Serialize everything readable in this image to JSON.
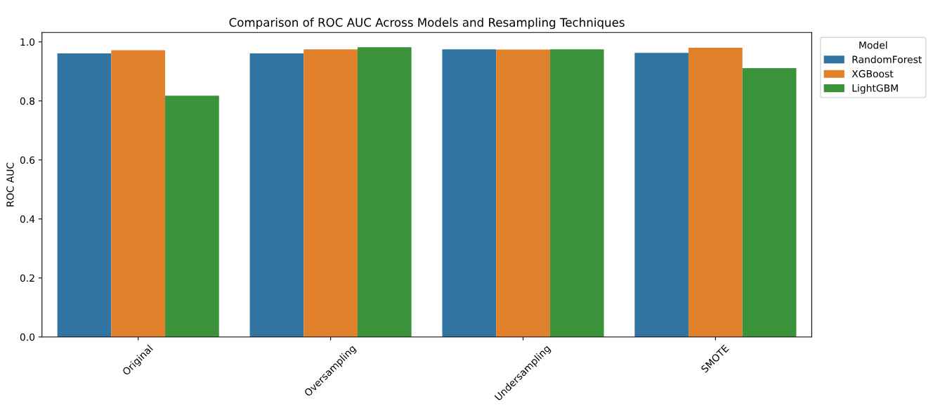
{
  "chart_data": {
    "type": "bar",
    "title": "Comparison of ROC AUC Across Models and Resampling Techniques",
    "ylabel": "ROC AUC",
    "legend_title": "Model",
    "categories": [
      "Original",
      "Oversampling",
      "Undersampling",
      "SMOTE"
    ],
    "series": [
      {
        "name": "RandomForest",
        "color": "#3274a1",
        "values": [
          0.961,
          0.961,
          0.975,
          0.963
        ]
      },
      {
        "name": "XGBoost",
        "color": "#e1812c",
        "values": [
          0.972,
          0.975,
          0.974,
          0.98
        ]
      },
      {
        "name": "LightGBM",
        "color": "#3a923a",
        "values": [
          0.818,
          0.982,
          0.975,
          0.911
        ]
      }
    ],
    "ylim": [
      0,
      1.032
    ],
    "yticks": [
      {
        "value": 0,
        "label": "0.0"
      },
      0.2,
      0.4,
      0.6,
      0.8,
      {
        "value": 1,
        "label": "1.0"
      }
    ],
    "legend": "top right",
    "grid": false
  }
}
